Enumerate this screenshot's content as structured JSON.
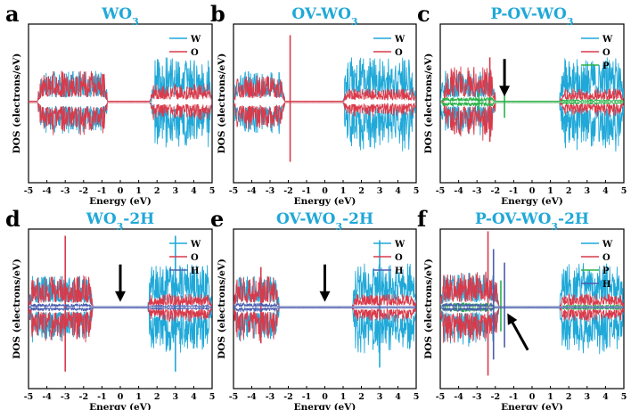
{
  "figure": {
    "xlabel": "Energy (eV)",
    "ylabel": "DOS (electrons/eV)",
    "xticks": [
      "-5",
      "-4",
      "-3",
      "-2",
      "-1",
      "0",
      "1",
      "2",
      "3",
      "4",
      "5"
    ],
    "colors": {
      "W": "#1fa8d8",
      "O": "#d93a4a",
      "P": "#2bb34a",
      "H": "#4b5fb0",
      "title": "#1fa8d8"
    }
  },
  "chart_data": [
    {
      "type": "line",
      "panel": "a",
      "title": "WO3",
      "xlabel": "Energy (eV)",
      "ylabel": "DOS (electrons/eV)",
      "xlim": [
        -5,
        5
      ],
      "legend": [
        "W",
        "O"
      ],
      "legend_position": "top-right",
      "series": [
        {
          "name": "W",
          "color": "#1fa8d8",
          "bands": [
            [
              -4.5,
              -0.7,
              0.7
            ],
            [
              1.7,
              5,
              1.0
            ]
          ],
          "spikes": []
        },
        {
          "name": "O",
          "color": "#d93a4a",
          "bands": [
            [
              -4.5,
              -0.7,
              0.7
            ],
            [
              1.6,
              5,
              0.4
            ]
          ],
          "spikes": []
        }
      ],
      "arrow": null
    },
    {
      "type": "line",
      "panel": "b",
      "title": "OV-WO3",
      "xlabel": "Energy (eV)",
      "ylabel": "DOS (electrons/eV)",
      "xlim": [
        -5,
        5
      ],
      "legend": [
        "W",
        "O"
      ],
      "legend_position": "top-right",
      "series": [
        {
          "name": "W",
          "color": "#1fa8d8",
          "bands": [
            [
              -5,
              -2.2,
              0.7
            ],
            [
              1,
              5,
              1.0
            ]
          ],
          "spikes": []
        },
        {
          "name": "O",
          "color": "#d93a4a",
          "bands": [
            [
              -5,
              -2.2,
              0.6
            ],
            [
              1,
              5,
              0.3
            ]
          ],
          "spikes": [
            [
              -1.9,
              1.5
            ]
          ]
        }
      ],
      "arrow": null
    },
    {
      "type": "line",
      "panel": "c",
      "title": "P-OV-WO3",
      "xlabel": "Energy (eV)",
      "ylabel": "DOS (electrons/eV)",
      "xlim": [
        -5,
        5
      ],
      "legend": [
        "W",
        "O",
        "P"
      ],
      "legend_position": "top-right",
      "series": [
        {
          "name": "W",
          "color": "#1fa8d8",
          "bands": [
            [
              -5,
              -2,
              0.7
            ],
            [
              1.5,
              5,
              1.0
            ]
          ],
          "spikes": []
        },
        {
          "name": "O",
          "color": "#d93a4a",
          "bands": [
            [
              -4.8,
              -2,
              0.8
            ],
            [
              1.5,
              5,
              0.3
            ]
          ],
          "spikes": [
            [
              -2.3,
              1.0
            ]
          ]
        },
        {
          "name": "P",
          "color": "#2bb34a",
          "bands": [
            [
              -5,
              -2,
              0.1
            ],
            [
              1.5,
              5,
              0.05
            ]
          ],
          "spikes": [
            [
              -1.5,
              0.4
            ],
            [
              -2.9,
              0.2
            ]
          ]
        }
      ],
      "arrow": {
        "x": -1.5,
        "direction": "down"
      }
    },
    {
      "type": "line",
      "panel": "d",
      "title": "WO3-2H",
      "xlabel": "Energy (eV)",
      "ylabel": "DOS (electrons/eV)",
      "xlim": [
        -5,
        5
      ],
      "legend": [
        "W",
        "O",
        "H"
      ],
      "legend_position": "top-right",
      "series": [
        {
          "name": "W",
          "color": "#1fa8d8",
          "bands": [
            [
              -5,
              -1.5,
              0.7
            ],
            [
              1.5,
              5,
              1.0
            ]
          ],
          "spikes": [
            [
              3,
              1.6
            ]
          ]
        },
        {
          "name": "O",
          "color": "#d93a4a",
          "bands": [
            [
              -5,
              -1.5,
              0.7
            ],
            [
              1.5,
              5,
              0.3
            ]
          ],
          "spikes": [
            [
              -3,
              1.6
            ]
          ]
        },
        {
          "name": "H",
          "color": "#4b5fb0",
          "bands": [
            [
              -5,
              -1.5,
              0.08
            ],
            [
              1.5,
              5,
              0.05
            ]
          ],
          "spikes": []
        }
      ],
      "arrow": {
        "x": 0,
        "direction": "down"
      }
    },
    {
      "type": "line",
      "panel": "e",
      "title": "OV-WO3-2H",
      "xlabel": "Energy (eV)",
      "ylabel": "DOS (electrons/eV)",
      "xlim": [
        -5,
        5
      ],
      "legend": [
        "W",
        "O",
        "H"
      ],
      "legend_position": "top-right",
      "series": [
        {
          "name": "W",
          "color": "#1fa8d8",
          "bands": [
            [
              -5,
              -2.5,
              0.7
            ],
            [
              1.5,
              5,
              1.0
            ]
          ],
          "spikes": [
            [
              3,
              1.5
            ]
          ]
        },
        {
          "name": "O",
          "color": "#d93a4a",
          "bands": [
            [
              -5,
              -2.5,
              0.7
            ],
            [
              1.5,
              5,
              0.3
            ]
          ],
          "spikes": [
            [
              -3.5,
              0.9
            ]
          ]
        },
        {
          "name": "H",
          "color": "#4b5fb0",
          "bands": [
            [
              -5,
              -2.5,
              0.1
            ]
          ],
          "spikes": []
        }
      ],
      "arrow": {
        "x": 0,
        "direction": "down"
      }
    },
    {
      "type": "line",
      "panel": "f",
      "title": "P-OV-WO3-2H",
      "xlabel": "Energy (eV)",
      "ylabel": "DOS (electrons/eV)",
      "xlim": [
        -5,
        5
      ],
      "legend": [
        "W",
        "O",
        "P",
        "H"
      ],
      "legend_position": "top-right",
      "series": [
        {
          "name": "W",
          "color": "#1fa8d8",
          "bands": [
            [
              -5,
              -1.8,
              0.8
            ],
            [
              1.5,
              5,
              1.0
            ]
          ],
          "spikes": []
        },
        {
          "name": "O",
          "color": "#d93a4a",
          "bands": [
            [
              -5,
              -1.8,
              0.8
            ],
            [
              1.5,
              5,
              0.3
            ]
          ],
          "spikes": [
            [
              -2.4,
              1.7
            ]
          ]
        },
        {
          "name": "P",
          "color": "#2bb34a",
          "bands": [
            [
              -5,
              -2,
              0.1
            ],
            [
              1.5,
              5,
              0.05
            ]
          ],
          "spikes": [
            [
              -1.7,
              0.6
            ]
          ]
        },
        {
          "name": "H",
          "color": "#4b5fb0",
          "bands": [
            [
              -5,
              -2,
              0.1
            ]
          ],
          "spikes": [
            [
              -2.1,
              1.3
            ],
            [
              -1.5,
              1.0
            ]
          ]
        }
      ],
      "arrow": {
        "x": -1.3,
        "direction": "up-left"
      }
    }
  ]
}
